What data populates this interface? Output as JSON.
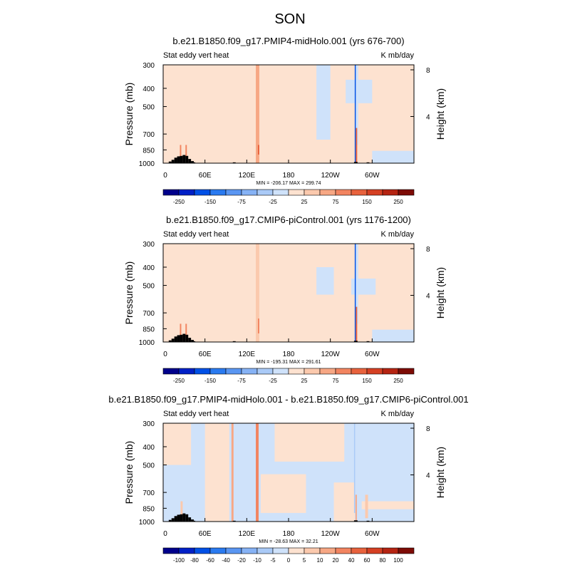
{
  "season_title": "SON",
  "chart_data": [
    {
      "type": "heatmap",
      "title": "b.e21.B1850.f09_g17.PMIP4-midHolo.001 (yrs 676-700)",
      "left_label": "Stat eddy vert heat",
      "right_label": "K mb/day",
      "ylabel": "Pressure (mb)",
      "ylabel_right": "Height (km)",
      "xticks": [
        "0",
        "60E",
        "120E",
        "180",
        "120W",
        "60W"
      ],
      "yticks": [
        "300",
        "400",
        "500",
        "700",
        "850",
        "1000"
      ],
      "height_ticks": [
        "8",
        "4"
      ],
      "stats": "MIN = -206.17   MAX = 299.74",
      "colorbar_labels": [
        "-250",
        "-150",
        "-75",
        "-25",
        "25",
        "75",
        "150",
        "250"
      ],
      "field": {
        "background": 10,
        "patches": [
          {
            "lon": [
              0,
              18
            ],
            "p": [
              300,
              1000
            ],
            "v": 15
          },
          {
            "lon": [
              115,
              130
            ],
            "p": [
              300,
              1000
            ],
            "v": 15
          },
          {
            "lon": [
              220,
              240
            ],
            "p": [
              300,
              750
            ],
            "v": -10
          },
          {
            "lon": [
              275,
              280
            ],
            "p": [
              300,
              800
            ],
            "v": -15
          },
          {
            "lon": [
              300,
              360
            ],
            "p": [
              860,
              1000
            ],
            "v": -10
          },
          {
            "lon": [
              262,
              300
            ],
            "p": [
              360,
              480
            ],
            "v": -10
          },
          {
            "lon": [
              133,
              138
            ],
            "p": [
              300,
              1000
            ],
            "v": 60
          },
          {
            "lon": [
              136,
              138
            ],
            "p": [
              800,
              900
            ],
            "v": 120
          },
          {
            "lon": [
              275,
              276.5
            ],
            "p": [
              300,
              1000
            ],
            "v": -180
          },
          {
            "lon": [
              276.5,
              278.5
            ],
            "p": [
              650,
              1000
            ],
            "v": 100
          },
          {
            "lon": [
              24,
              26
            ],
            "p": [
              800,
              950
            ],
            "v": 80
          },
          {
            "lon": [
              32,
              34
            ],
            "p": [
              800,
              950
            ],
            "v": 90
          }
        ]
      }
    },
    {
      "type": "heatmap",
      "title": "b.e21.B1850.f09_g17.CMIP6-piControl.001 (yrs 1176-1200)",
      "left_label": "Stat eddy vert heat",
      "right_label": "K mb/day",
      "ylabel": "Pressure (mb)",
      "ylabel_right": "Height (km)",
      "xticks": [
        "0",
        "60E",
        "120E",
        "180",
        "120W",
        "60W"
      ],
      "yticks": [
        "300",
        "400",
        "500",
        "700",
        "850",
        "1000"
      ],
      "height_ticks": [
        "8",
        "4"
      ],
      "stats": "MIN = -195.31   MAX = 291.61",
      "colorbar_labels": [
        "-250",
        "-150",
        "-75",
        "-25",
        "25",
        "75",
        "150",
        "250"
      ],
      "field": {
        "background": 10,
        "patches": [
          {
            "lon": [
              0,
              18
            ],
            "p": [
              300,
              1000
            ],
            "v": 15
          },
          {
            "lon": [
              115,
              130
            ],
            "p": [
              300,
              1000
            ],
            "v": 15
          },
          {
            "lon": [
              220,
              245
            ],
            "p": [
              400,
              560
            ],
            "v": -10
          },
          {
            "lon": [
              275,
              280
            ],
            "p": [
              300,
              800
            ],
            "v": -15
          },
          {
            "lon": [
              300,
              360
            ],
            "p": [
              860,
              1000
            ],
            "v": -10
          },
          {
            "lon": [
              270,
              305
            ],
            "p": [
              460,
              560
            ],
            "v": -10
          },
          {
            "lon": [
              133,
              138
            ],
            "p": [
              300,
              1000
            ],
            "v": 40
          },
          {
            "lon": [
              136,
              138
            ],
            "p": [
              750,
              900
            ],
            "v": 90
          },
          {
            "lon": [
              275,
              276.5
            ],
            "p": [
              300,
              1000
            ],
            "v": -180
          },
          {
            "lon": [
              276.5,
              278.5
            ],
            "p": [
              650,
              1000
            ],
            "v": 100
          },
          {
            "lon": [
              24,
              26
            ],
            "p": [
              800,
              950
            ],
            "v": 80
          },
          {
            "lon": [
              32,
              34
            ],
            "p": [
              800,
              950
            ],
            "v": 90
          }
        ]
      }
    },
    {
      "type": "heatmap",
      "title": "b.e21.B1850.f09_g17.PMIP4-midHolo.001 - b.e21.B1850.f09_g17.CMIP6-piControl.001",
      "left_label": "Stat eddy vert heat",
      "right_label": "K mb/day",
      "ylabel": "Pressure (mb)",
      "ylabel_right": "Height (km)",
      "xticks": [
        "0",
        "60E",
        "120E",
        "180",
        "120W",
        "60W"
      ],
      "yticks": [
        "300",
        "400",
        "500",
        "700",
        "850",
        "1000"
      ],
      "height_ticks": [
        "8",
        "4"
      ],
      "stats": "MIN = -28.63   MAX = 32.21",
      "colorbar_labels": [
        "-100",
        "-80",
        "-60",
        "-40",
        "-20",
        "-10",
        "-5",
        "0",
        "5",
        "10",
        "20",
        "40",
        "60",
        "80",
        "100"
      ],
      "field": {
        "background": -3,
        "patches": [
          {
            "lon": [
              0,
              40
            ],
            "p": [
              300,
              500
            ],
            "v": 3
          },
          {
            "lon": [
              60,
              95
            ],
            "p": [
              300,
              1000
            ],
            "v": 3
          },
          {
            "lon": [
              140,
              205
            ],
            "p": [
              560,
              900
            ],
            "v": 3
          },
          {
            "lon": [
              160,
              260
            ],
            "p": [
              300,
              480
            ],
            "v": 3
          },
          {
            "lon": [
              285,
              360
            ],
            "p": [
              780,
              860
            ],
            "v": 3
          },
          {
            "lon": [
              245,
              275
            ],
            "p": [
              620,
              1000
            ],
            "v": 3
          },
          {
            "lon": [
              98,
              101
            ],
            "p": [
              300,
              1000
            ],
            "v": 12
          },
          {
            "lon": [
              133,
              137
            ],
            "p": [
              300,
              1000
            ],
            "v": 25
          },
          {
            "lon": [
              276,
              278
            ],
            "p": [
              720,
              1000
            ],
            "v": 12
          },
          {
            "lon": [
              290,
              294
            ],
            "p": [
              720,
              960
            ],
            "v": 8
          },
          {
            "lon": [
              25,
              28
            ],
            "p": [
              780,
              1000
            ],
            "v": 8
          },
          {
            "lon": [
              274,
              275.5
            ],
            "p": [
              300,
              900
            ],
            "v": -8
          }
        ]
      }
    }
  ]
}
